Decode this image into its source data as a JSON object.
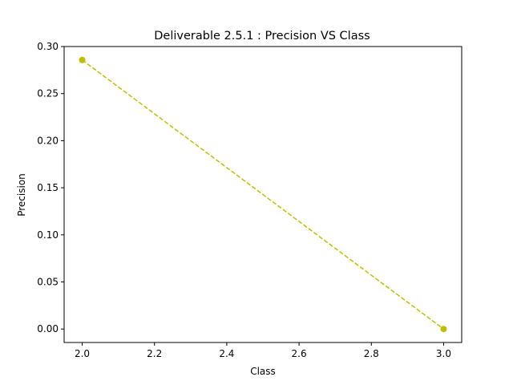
{
  "chart_data": {
    "type": "line",
    "title": "Deliverable 2.5.1 : Precision VS Class",
    "xlabel": "Class",
    "ylabel": "Precision",
    "xlim": [
      1.95,
      3.05
    ],
    "ylim": [
      -0.0143,
      0.3
    ],
    "xticks": [
      2.0,
      2.2,
      2.4,
      2.6,
      2.8,
      3.0
    ],
    "xtick_labels": [
      "2.0",
      "2.2",
      "2.4",
      "2.6",
      "2.8",
      "3.0"
    ],
    "yticks": [
      0.0,
      0.05,
      0.1,
      0.15,
      0.2,
      0.25,
      0.3
    ],
    "ytick_labels": [
      "0.00",
      "0.05",
      "0.10",
      "0.15",
      "0.20",
      "0.25",
      "0.30"
    ],
    "grid": false,
    "series": [
      {
        "color": "#bfbf00",
        "line_style": "dashed",
        "marker": "circle",
        "x": [
          2.0,
          3.0
        ],
        "y": [
          0.2857,
          0.0
        ]
      }
    ]
  }
}
